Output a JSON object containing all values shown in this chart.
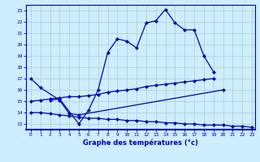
{
  "xlabel": "Graphe des températures (°c)",
  "x_ticks": [
    0,
    1,
    2,
    3,
    4,
    5,
    6,
    7,
    8,
    9,
    10,
    11,
    12,
    13,
    14,
    15,
    16,
    17,
    18,
    19,
    20,
    21,
    22,
    23
  ],
  "ylim": [
    12.5,
    23.5
  ],
  "xlim": [
    -0.5,
    23.3
  ],
  "yticks": [
    13,
    14,
    15,
    16,
    17,
    18,
    19,
    20,
    21,
    22,
    23
  ],
  "background_color": "#cceeff",
  "grid_color": "#aacccc",
  "line_color": "#0000bb",
  "line1": {
    "x": [
      0,
      1,
      3,
      4,
      5,
      20
    ],
    "y": [
      17.0,
      16.2,
      15.1,
      13.9,
      13.8,
      16.0
    ]
  },
  "line2": {
    "x": [
      2,
      3,
      5,
      6,
      7,
      8,
      9,
      10,
      11,
      12,
      13,
      14,
      15,
      16,
      17,
      18,
      19
    ],
    "y": [
      15.1,
      15.2,
      13.0,
      14.2,
      16.0,
      19.3,
      20.5,
      20.3,
      19.7,
      21.9,
      22.1,
      23.1,
      21.9,
      21.3,
      21.3,
      19.0,
      17.6
    ]
  },
  "line3": {
    "x": [
      0,
      1,
      2,
      3,
      4,
      5,
      6,
      7,
      8,
      9,
      10,
      11,
      12,
      13,
      14,
      15,
      16,
      17,
      18,
      19
    ],
    "y": [
      15.0,
      15.1,
      15.2,
      15.3,
      15.4,
      15.4,
      15.5,
      15.6,
      15.8,
      15.9,
      16.0,
      16.1,
      16.3,
      16.4,
      16.5,
      16.6,
      16.7,
      16.8,
      16.9,
      17.0
    ]
  },
  "line4": {
    "x": [
      0,
      1,
      2,
      3,
      4,
      5,
      6,
      7,
      8,
      9,
      10,
      11,
      12,
      13,
      14,
      15,
      16,
      17,
      18,
      19,
      20,
      21,
      22,
      23
    ],
    "y": [
      14.0,
      14.0,
      13.9,
      13.8,
      13.7,
      13.6,
      13.5,
      13.5,
      13.4,
      13.4,
      13.3,
      13.3,
      13.2,
      13.2,
      13.1,
      13.1,
      13.0,
      13.0,
      12.9,
      12.9,
      12.9,
      12.8,
      12.8,
      12.7
    ]
  }
}
